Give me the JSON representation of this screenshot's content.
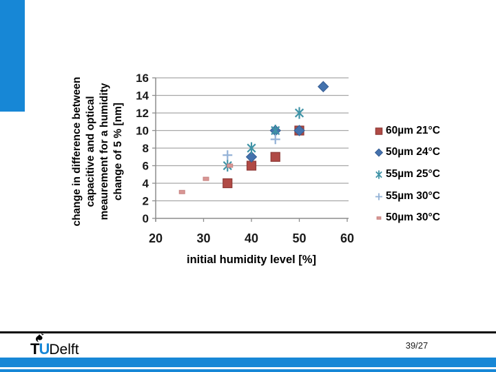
{
  "slide": {
    "page_number": "39/27",
    "logo": {
      "t": "T",
      "u": "U",
      "name": "Delft"
    },
    "accent_color": "#1787d6"
  },
  "chart_data": {
    "type": "scatter",
    "title": "",
    "xlabel": "initial humidity level [%]",
    "ylabel_lines": [
      "change in difference between",
      "capacitive and optical",
      "meaurement for a humidity",
      "change of 5 % [nm]"
    ],
    "xlim": [
      20,
      60
    ],
    "ylim": [
      0,
      16
    ],
    "xticks": [
      20,
      30,
      40,
      50,
      60
    ],
    "yticks": [
      0,
      2,
      4,
      6,
      8,
      10,
      12,
      14,
      16
    ],
    "grid": "horizontal-only",
    "legend_position": "right",
    "axis_color": "#8c8c8c",
    "grid_color": "#a6a6a6",
    "tick_label_color": "#1a1a1a",
    "series": [
      {
        "name": "60µm 21°C",
        "marker": "square",
        "color": "#b04a45",
        "edge": "#8e3a37",
        "points": [
          [
            35,
            4
          ],
          [
            40,
            6
          ],
          [
            45,
            7
          ],
          [
            50,
            10
          ]
        ]
      },
      {
        "name": "50µm 24°C",
        "marker": "diamond",
        "color": "#4472ad",
        "edge": "#365d94",
        "points": [
          [
            40,
            7
          ],
          [
            45,
            10
          ],
          [
            50,
            10
          ],
          [
            55,
            15
          ]
        ]
      },
      {
        "name": "55µm 25°C",
        "marker": "asterisk",
        "color": "#3f93a6",
        "edge": "#3f93a6",
        "points": [
          [
            35,
            6
          ],
          [
            40,
            8
          ],
          [
            45,
            10
          ],
          [
            50,
            12
          ]
        ]
      },
      {
        "name": "55µm 30°C",
        "marker": "plus",
        "color": "#95b3d7",
        "edge": "#95b3d7",
        "points": [
          [
            35,
            7.2
          ],
          [
            45,
            9
          ]
        ]
      },
      {
        "name": "50µm 30°C",
        "marker": "small-square",
        "color": "#d99694",
        "edge": "#c68381",
        "points": [
          [
            25.5,
            3
          ],
          [
            30.5,
            4.5
          ],
          [
            35.5,
            6
          ]
        ]
      }
    ]
  }
}
